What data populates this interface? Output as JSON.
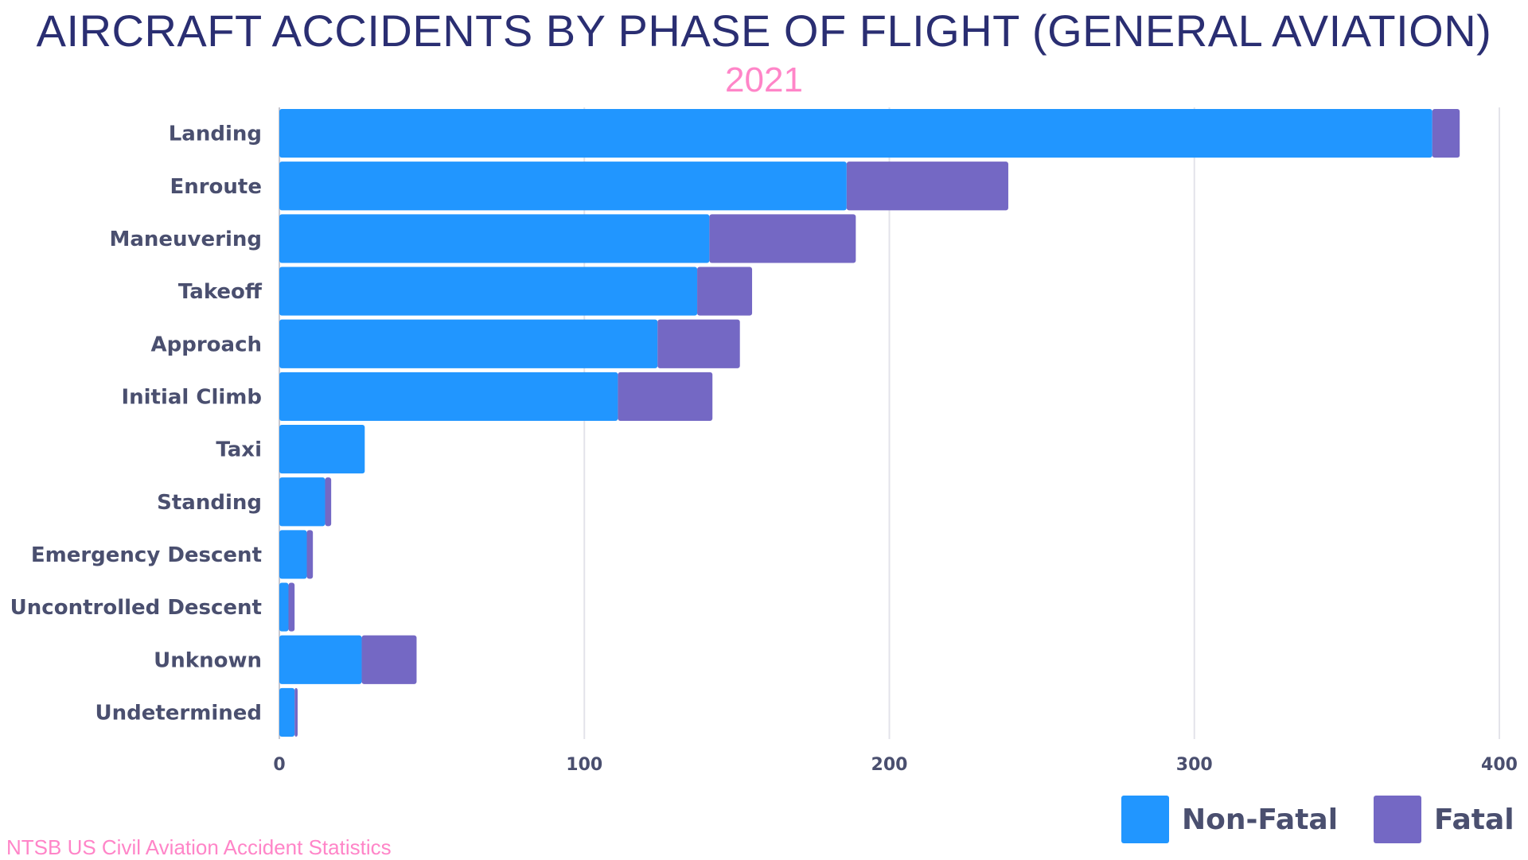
{
  "chart_data": {
    "type": "bar",
    "orientation": "horizontal",
    "stacked": true,
    "title": "AIRCRAFT ACCIDENTS BY PHASE OF FLIGHT (GENERAL AVIATION)",
    "subtitle": "2021",
    "categories": [
      "Landing",
      "Enroute",
      "Maneuvering",
      "Takeoff",
      "Approach",
      "Initial Climb",
      "Taxi",
      "Standing",
      "Emergency Descent",
      "Uncontrolled Descent",
      "Unknown",
      "Undetermined"
    ],
    "series": [
      {
        "name": "Non-Fatal",
        "color": "#2196ff",
        "values": [
          378,
          186,
          141,
          137,
          124,
          111,
          28,
          15,
          9,
          3,
          27,
          5
        ]
      },
      {
        "name": "Fatal",
        "color": "#7468c4",
        "values": [
          9,
          53,
          48,
          18,
          27,
          31,
          0,
          2,
          2,
          2,
          18,
          1
        ]
      }
    ],
    "xlim": [
      0,
      400
    ],
    "xticks": [
      "0",
      "100",
      "200",
      "300",
      "400"
    ],
    "grid": "vertical",
    "legend": "bottom-right",
    "source": "NTSB US Civil Aviation Accident Statistics"
  }
}
